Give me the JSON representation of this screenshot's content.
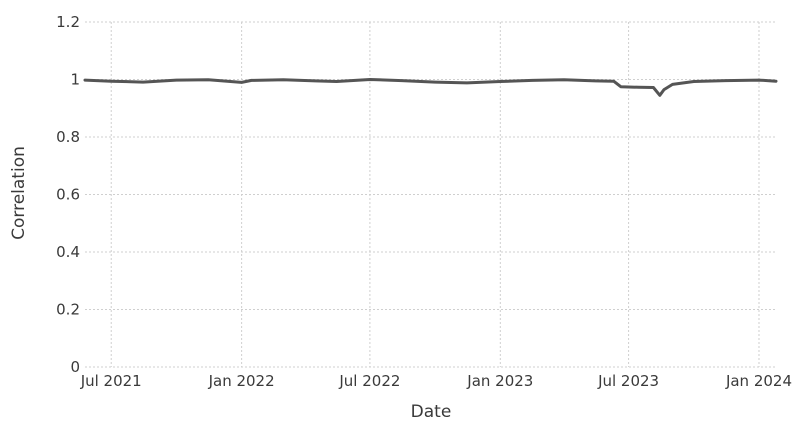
{
  "chart_data": {
    "type": "line",
    "title": "",
    "xlabel": "Date",
    "ylabel": "Correlation",
    "xlim": [
      "2021-05-25",
      "2024-01-25"
    ],
    "ylim": [
      0,
      1.2
    ],
    "grid": true,
    "x_ticks": [
      {
        "value": "2021-07-01",
        "label": "Jul 2021"
      },
      {
        "value": "2022-01-01",
        "label": "Jan 2022"
      },
      {
        "value": "2022-07-01",
        "label": "Jul 2022"
      },
      {
        "value": "2023-01-01",
        "label": "Jan 2023"
      },
      {
        "value": "2023-07-01",
        "label": "Jul 2023"
      },
      {
        "value": "2024-01-01",
        "label": "Jan 2024"
      }
    ],
    "y_ticks": [
      {
        "value": 0,
        "label": "0"
      },
      {
        "value": 0.2,
        "label": "0.2"
      },
      {
        "value": 0.4,
        "label": "0.4"
      },
      {
        "value": 0.6,
        "label": "0.6"
      },
      {
        "value": 0.8,
        "label": "0.8"
      },
      {
        "value": 1,
        "label": "1"
      },
      {
        "value": 1.2,
        "label": "1.2"
      }
    ],
    "series": [
      {
        "color": "#555555",
        "x": [
          "2021-05-25",
          "2021-07-01",
          "2021-08-15",
          "2021-10-01",
          "2021-11-15",
          "2022-01-01",
          "2022-01-15",
          "2022-03-01",
          "2022-04-15",
          "2022-05-15",
          "2022-07-01",
          "2022-08-15",
          "2022-10-01",
          "2022-11-15",
          "2023-01-01",
          "2023-02-15",
          "2023-04-01",
          "2023-05-15",
          "2023-06-10",
          "2023-06-20",
          "2023-07-15",
          "2023-08-05",
          "2023-08-14",
          "2023-08-20",
          "2023-09-01",
          "2023-10-01",
          "2023-11-15",
          "2024-01-01",
          "2024-01-25"
        ],
        "y": [
          0.998,
          0.994,
          0.991,
          0.998,
          0.999,
          0.99,
          0.997,
          0.999,
          0.995,
          0.993,
          1.0,
          0.996,
          0.991,
          0.988,
          0.993,
          0.997,
          0.999,
          0.995,
          0.994,
          0.975,
          0.973,
          0.972,
          0.945,
          0.965,
          0.983,
          0.993,
          0.996,
          0.998,
          0.994
        ]
      }
    ]
  }
}
